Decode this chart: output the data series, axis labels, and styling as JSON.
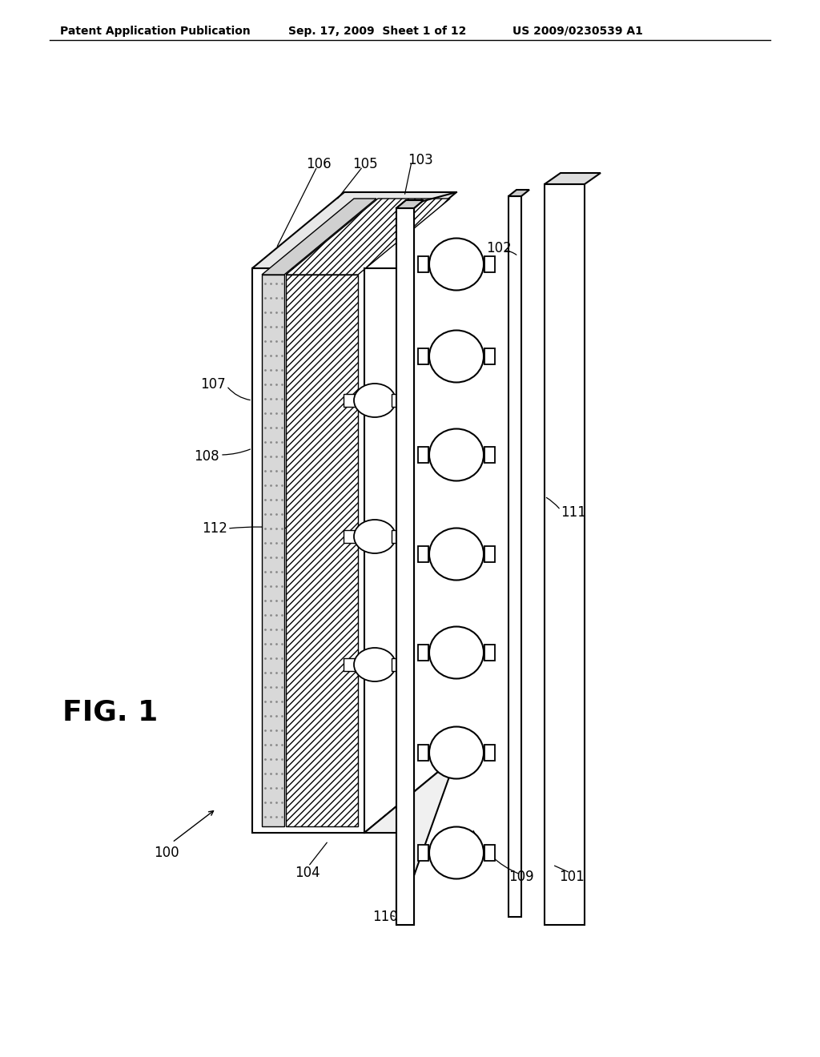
{
  "bg_color": "#ffffff",
  "header_text": "Patent Application Publication",
  "header_date": "Sep. 17, 2009  Sheet 1 of 12",
  "header_patent": "US 2009/0230539 A1",
  "line_color": "#000000",
  "lw": 1.5,
  "thin_lw": 1.0
}
